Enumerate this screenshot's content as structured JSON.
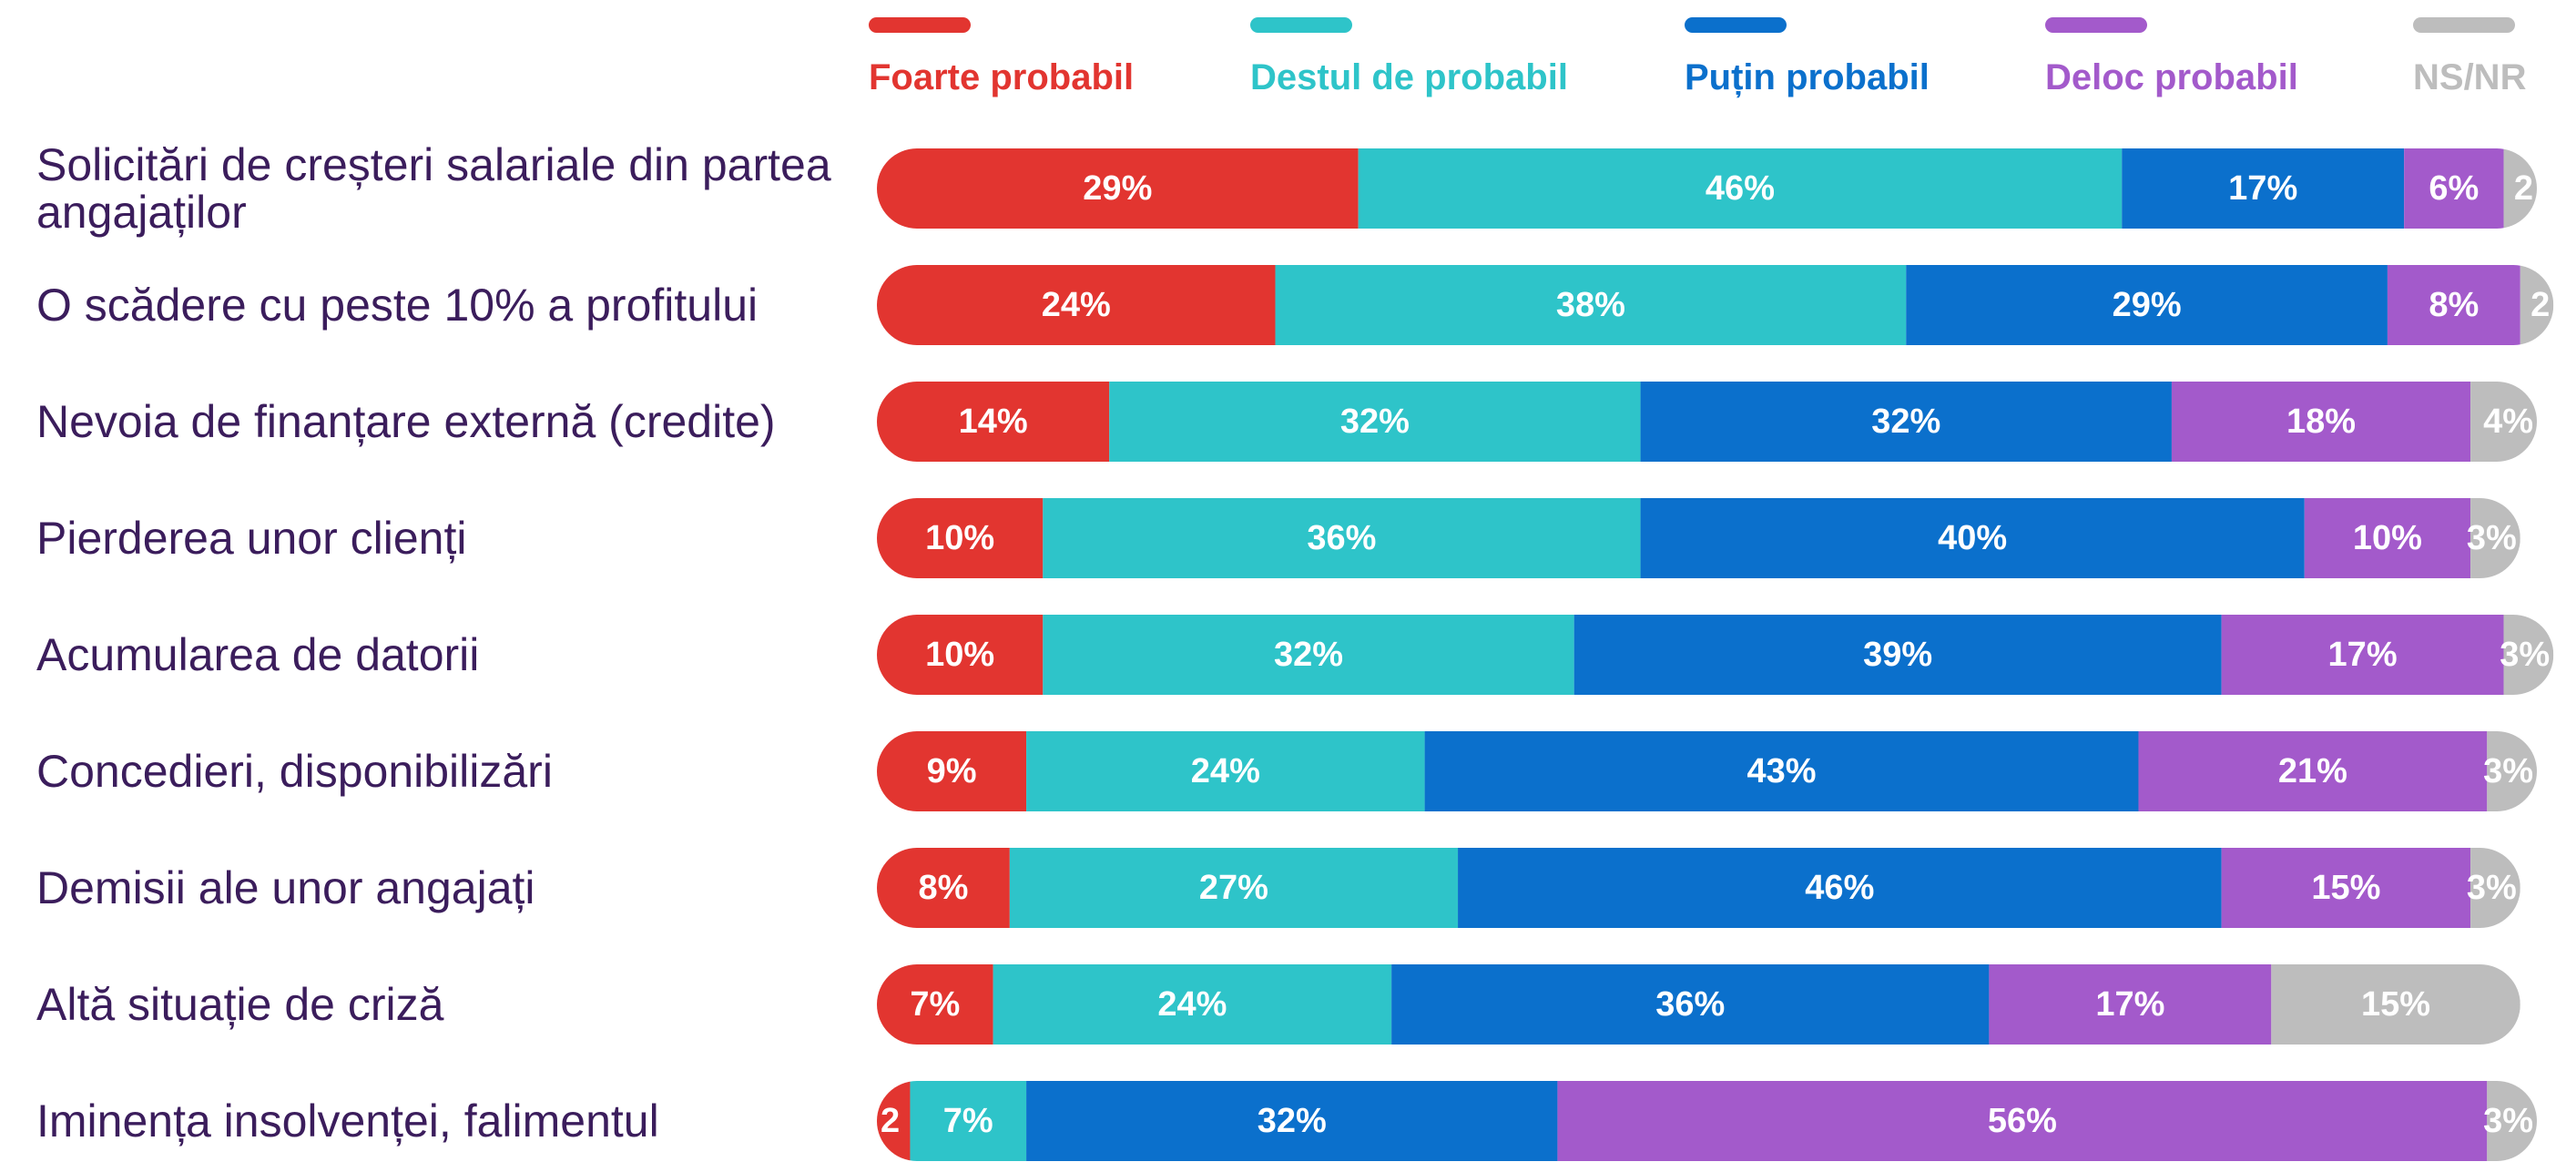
{
  "chart_data": {
    "type": "stacked-bar",
    "categories": [
      "Solicitări de creșteri salariale din partea angajaților",
      "O scădere cu peste 10% a profitului",
      "Nevoia de finanțare externă (credite)",
      "Pierderea unor clienți",
      "Acumularea de datorii",
      "Concedieri, disponibilizări",
      "Demisii ale unor angajați",
      "Altă situație de criză",
      "Iminența insolvenței, falimentul"
    ],
    "xlim": [
      0,
      100
    ],
    "series": [
      {
        "name": "Foarte probabil",
        "color": "#e23530",
        "values": [
          29,
          24,
          14,
          10,
          10,
          9,
          8,
          7,
          2
        ],
        "value_labels": [
          "29%",
          "24%",
          "14%",
          "10%",
          "10%",
          "9%",
          "8%",
          "7%",
          "2"
        ]
      },
      {
        "name": "Destul de probabil",
        "color": "#2ec4c9",
        "values": [
          46,
          38,
          32,
          36,
          32,
          24,
          27,
          24,
          7
        ],
        "value_labels": [
          "46%",
          "38%",
          "32%",
          "36%",
          "32%",
          "24%",
          "27%",
          "24%",
          "7%"
        ]
      },
      {
        "name": "Puțin probabil",
        "color": "#0b70cc",
        "values": [
          17,
          29,
          32,
          40,
          39,
          43,
          46,
          36,
          32
        ],
        "value_labels": [
          "17%",
          "29%",
          "32%",
          "40%",
          "39%",
          "43%",
          "46%",
          "36%",
          "32%"
        ]
      },
      {
        "name": "Deloc probabil",
        "color": "#a35acb",
        "values": [
          6,
          8,
          18,
          10,
          17,
          21,
          15,
          17,
          56
        ],
        "value_labels": [
          "6%",
          "8%",
          "18%",
          "10%",
          "17%",
          "21%",
          "15%",
          "17%",
          "56%"
        ]
      },
      {
        "name": "NS/NR",
        "color": "#bdbdbd",
        "values": [
          2,
          2,
          4,
          3,
          3,
          3,
          3,
          15,
          3
        ],
        "value_labels": [
          "2",
          "2",
          "4%",
          "3%",
          "3%",
          "3%",
          "3%",
          "15%",
          "3%"
        ]
      }
    ]
  }
}
